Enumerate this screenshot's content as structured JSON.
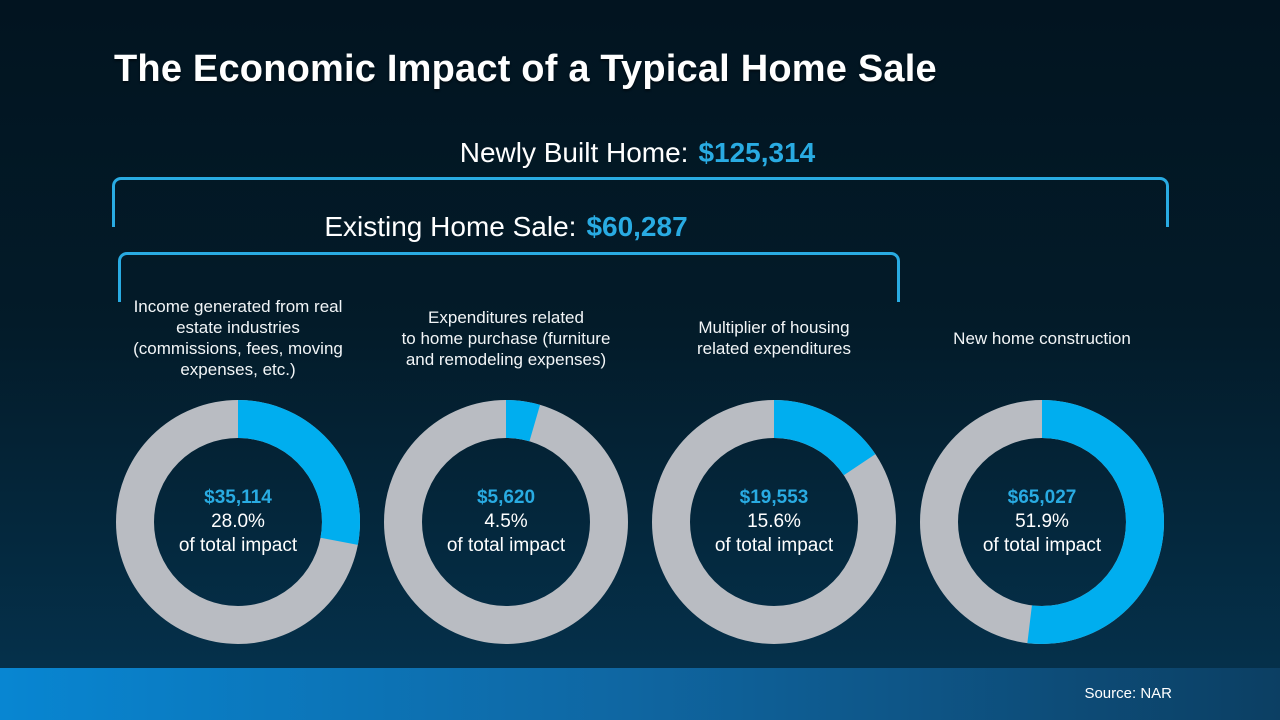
{
  "title": "The Economic Impact of a Typical Home Sale",
  "headers": {
    "newly_built": {
      "label": "Newly Built Home:",
      "value": "$125,314"
    },
    "existing": {
      "label": "Existing Home Sale:",
      "value": "$60,287"
    }
  },
  "footer": {
    "source": "Source: NAR"
  },
  "colors": {
    "accent_text": "#29abe2",
    "bracket": "#29abe2",
    "donut_highlight": "#00aeef",
    "donut_remainder": "#b9bcc2"
  },
  "chart_data": {
    "type": "pie",
    "subtype": "donut-small-multiples",
    "title": "The Economic Impact of a Typical Home Sale",
    "totals": {
      "newly_built_home": {
        "label": "Newly Built Home:",
        "value": 125314,
        "value_label": "$125,314"
      },
      "existing_home_sale": {
        "label": "Existing Home Sale:",
        "value": 60287,
        "value_label": "$60,287"
      }
    },
    "segment_colors": {
      "highlight": "#00aeef",
      "remainder": "#b9bcc2"
    },
    "items": [
      {
        "label_lines": [
          "Income generated from real",
          "estate industries",
          "(commissions, fees, moving",
          "expenses, etc.)"
        ],
        "value": 35114,
        "value_label": "$35,114",
        "percent": 28.0,
        "percent_label": "28.0%",
        "suffix": "of total impact"
      },
      {
        "label_lines": [
          "Expenditures related",
          "to home purchase (furniture",
          "and remodeling expenses)"
        ],
        "value": 5620,
        "value_label": "$5,620",
        "percent": 4.5,
        "percent_label": "4.5%",
        "suffix": "of total impact"
      },
      {
        "label_lines": [
          "Multiplier of housing",
          "related expenditures"
        ],
        "value": 19553,
        "value_label": "$19,553",
        "percent": 15.6,
        "percent_label": "15.6%",
        "suffix": "of total impact"
      },
      {
        "label_lines": [
          "New home construction"
        ],
        "value": 65027,
        "value_label": "$65,027",
        "percent": 51.9,
        "percent_label": "51.9%",
        "suffix": "of total impact"
      }
    ],
    "source": "Source: NAR"
  }
}
